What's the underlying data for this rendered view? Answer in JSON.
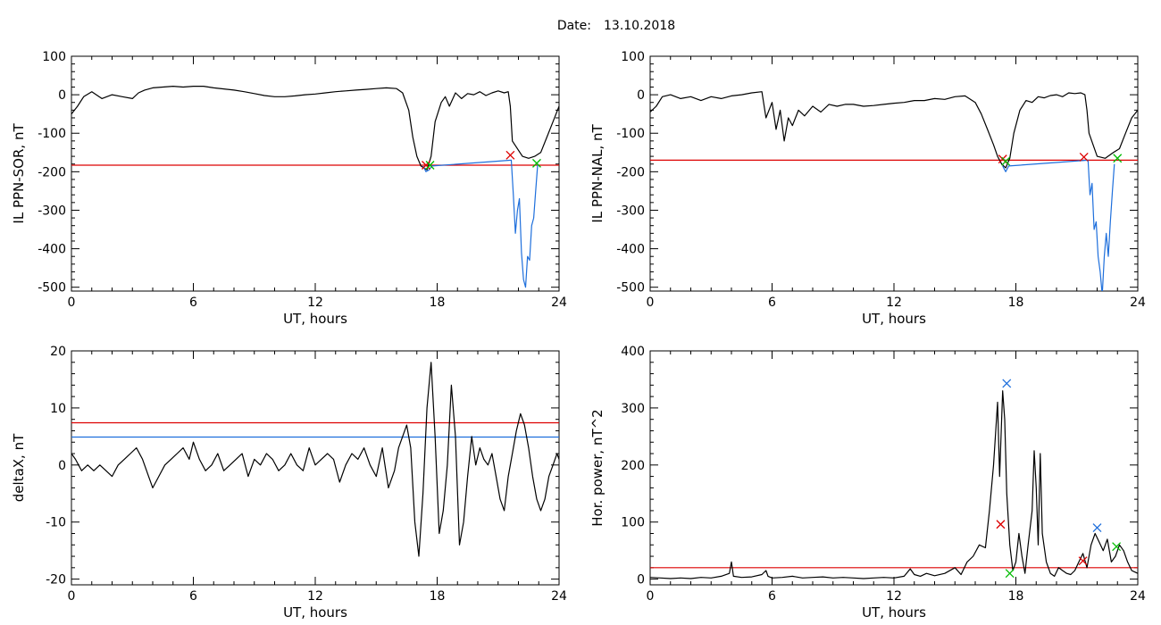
{
  "title_prefix": "Date:",
  "title_date": "13.10.2018",
  "chart_data": [
    {
      "type": "line",
      "xlabel": "UT, hours",
      "ylabel": "IL PPN-SOR, nT",
      "xlim": [
        0,
        24
      ],
      "ylim": [
        -510,
        100
      ],
      "xticks": [
        0,
        6,
        12,
        18,
        24
      ],
      "yticks": [
        -500,
        -400,
        -300,
        -200,
        -100,
        0,
        100
      ],
      "series": [
        {
          "color": "#000000",
          "x": [
            0,
            0.3,
            0.6,
            1.0,
            1.5,
            2.0,
            2.5,
            3.0,
            3.3,
            3.6,
            4.0,
            4.5,
            5.0,
            5.5,
            6.0,
            6.5,
            7.0,
            7.5,
            8.0,
            8.5,
            9.0,
            9.5,
            10.0,
            10.5,
            11.0,
            11.5,
            12.0,
            12.5,
            13.0,
            13.5,
            14.0,
            14.5,
            15.0,
            15.5,
            16.0,
            16.3,
            16.6,
            16.8,
            17.0,
            17.2,
            17.5,
            17.7,
            17.9,
            18.2,
            18.4,
            18.6,
            18.9,
            19.2,
            19.5,
            19.8,
            20.1,
            20.4,
            20.7,
            21.0,
            21.3,
            21.5,
            21.6,
            21.7,
            22.2,
            22.5,
            22.8,
            23.1,
            23.4,
            23.7,
            24.0
          ],
          "y": [
            -50,
            -30,
            -5,
            8,
            -10,
            0,
            -5,
            -10,
            5,
            12,
            18,
            20,
            22,
            20,
            22,
            22,
            18,
            15,
            12,
            8,
            3,
            -2,
            -5,
            -5,
            -3,
            0,
            2,
            5,
            8,
            10,
            12,
            14,
            16,
            18,
            16,
            5,
            -40,
            -110,
            -160,
            -185,
            -195,
            -160,
            -70,
            -20,
            -5,
            -30,
            5,
            -10,
            3,
            0,
            8,
            -2,
            5,
            10,
            5,
            8,
            -30,
            -120,
            -160,
            -165,
            -160,
            -150,
            -110,
            -70,
            -30
          ]
        },
        {
          "color": "#1e6fdc",
          "x": [
            17.3,
            17.45,
            17.6,
            17.75,
            21.65,
            21.75,
            21.85,
            21.95,
            22.05,
            22.15,
            22.25,
            22.35,
            22.45,
            22.55,
            22.65,
            22.75,
            22.85,
            22.95
          ],
          "y": [
            -185,
            -200,
            -195,
            -185,
            -170,
            -260,
            -360,
            -300,
            -270,
            -410,
            -480,
            -500,
            -420,
            -430,
            -340,
            -320,
            -250,
            -180
          ]
        }
      ],
      "hlines": [
        {
          "y": -183,
          "color": "#dd0000"
        }
      ],
      "markers": [
        {
          "x": 17.45,
          "y": -183,
          "color": "#dd0000"
        },
        {
          "x": 17.65,
          "y": -183,
          "color": "#00bb00"
        },
        {
          "x": 21.6,
          "y": -157,
          "color": "#dd0000"
        },
        {
          "x": 22.9,
          "y": -178,
          "color": "#00bb00"
        }
      ]
    },
    {
      "type": "line",
      "xlabel": "UT, hours",
      "ylabel": "IL PPN-NAL, nT",
      "xlim": [
        0,
        24
      ],
      "ylim": [
        -510,
        100
      ],
      "xticks": [
        0,
        6,
        12,
        18,
        24
      ],
      "yticks": [
        -500,
        -400,
        -300,
        -200,
        -100,
        0,
        100
      ],
      "series": [
        {
          "color": "#000000",
          "x": [
            0,
            0.3,
            0.6,
            1.0,
            1.5,
            2.0,
            2.5,
            3.0,
            3.5,
            4.0,
            4.5,
            5.0,
            5.5,
            5.7,
            6.0,
            6.2,
            6.4,
            6.6,
            6.8,
            7.0,
            7.3,
            7.6,
            8.0,
            8.4,
            8.8,
            9.2,
            9.6,
            10.0,
            10.5,
            11.0,
            11.5,
            12.0,
            12.5,
            13.0,
            13.5,
            14.0,
            14.5,
            15.0,
            15.5,
            16.0,
            16.3,
            16.6,
            16.9,
            17.1,
            17.3,
            17.5,
            17.7,
            17.9,
            18.2,
            18.5,
            18.8,
            19.1,
            19.4,
            19.7,
            20.0,
            20.3,
            20.6,
            20.9,
            21.2,
            21.4,
            21.5,
            21.6,
            22.0,
            22.4,
            22.8,
            23.1,
            23.4,
            23.7,
            24.0
          ],
          "y": [
            -45,
            -30,
            -5,
            0,
            -10,
            -5,
            -15,
            -5,
            -10,
            -3,
            0,
            5,
            8,
            -60,
            -20,
            -90,
            -40,
            -120,
            -60,
            -80,
            -40,
            -55,
            -30,
            -45,
            -25,
            -30,
            -25,
            -25,
            -30,
            -28,
            -25,
            -22,
            -20,
            -15,
            -15,
            -10,
            -12,
            -5,
            -3,
            -20,
            -50,
            -90,
            -130,
            -160,
            -180,
            -190,
            -165,
            -100,
            -40,
            -15,
            -20,
            -5,
            -8,
            -2,
            0,
            -5,
            5,
            3,
            5,
            0,
            -40,
            -100,
            -160,
            -165,
            -150,
            -140,
            -100,
            -60,
            -40
          ]
        },
        {
          "color": "#1e6fdc",
          "x": [
            17.35,
            17.5,
            17.65,
            21.55,
            21.65,
            21.75,
            21.85,
            21.95,
            22.05,
            22.15,
            22.25,
            22.35,
            22.45,
            22.55,
            22.65,
            22.75,
            22.85
          ],
          "y": [
            -185,
            -200,
            -185,
            -170,
            -260,
            -230,
            -350,
            -330,
            -420,
            -460,
            -520,
            -420,
            -360,
            -420,
            -330,
            -250,
            -180
          ]
        }
      ],
      "hlines": [
        {
          "y": -170,
          "color": "#dd0000"
        }
      ],
      "markers": [
        {
          "x": 17.35,
          "y": -167,
          "color": "#dd0000"
        },
        {
          "x": 17.5,
          "y": -173,
          "color": "#00bb00"
        },
        {
          "x": 21.35,
          "y": -162,
          "color": "#dd0000"
        },
        {
          "x": 23.0,
          "y": -165,
          "color": "#00bb00"
        }
      ]
    },
    {
      "type": "line",
      "xlabel": "UT, hours",
      "ylabel": "deltaX, nT",
      "xlim": [
        0,
        24
      ],
      "ylim": [
        -21,
        20
      ],
      "xticks": [
        0,
        6,
        12,
        18,
        24
      ],
      "yticks": [
        -20,
        -10,
        0,
        10,
        20
      ],
      "series": [
        {
          "color": "#000000",
          "x": [
            0,
            0.2,
            0.5,
            0.8,
            1.1,
            1.4,
            1.7,
            2.0,
            2.3,
            2.6,
            2.9,
            3.2,
            3.5,
            3.8,
            4.0,
            4.3,
            4.6,
            4.9,
            5.2,
            5.5,
            5.8,
            6.0,
            6.3,
            6.6,
            6.9,
            7.2,
            7.5,
            7.8,
            8.1,
            8.4,
            8.7,
            9.0,
            9.3,
            9.6,
            9.9,
            10.2,
            10.5,
            10.8,
            11.1,
            11.4,
            11.7,
            12.0,
            12.3,
            12.6,
            12.9,
            13.2,
            13.5,
            13.8,
            14.1,
            14.4,
            14.7,
            15.0,
            15.3,
            15.6,
            15.9,
            16.1,
            16.3,
            16.5,
            16.7,
            16.9,
            17.1,
            17.3,
            17.5,
            17.7,
            17.9,
            18.1,
            18.3,
            18.5,
            18.7,
            18.9,
            19.1,
            19.3,
            19.5,
            19.7,
            19.9,
            20.1,
            20.3,
            20.5,
            20.7,
            20.9,
            21.1,
            21.3,
            21.5,
            21.7,
            21.9,
            22.1,
            22.3,
            22.5,
            22.7,
            22.9,
            23.1,
            23.3,
            23.5,
            23.7,
            23.9,
            24.0
          ],
          "y": [
            2,
            1,
            -1,
            0,
            -1,
            0,
            -1,
            -2,
            0,
            1,
            2,
            3,
            1,
            -2,
            -4,
            -2,
            0,
            1,
            2,
            3,
            1,
            4,
            1,
            -1,
            0,
            2,
            -1,
            0,
            1,
            2,
            -2,
            1,
            0,
            2,
            1,
            -1,
            0,
            2,
            0,
            -1,
            3,
            0,
            1,
            2,
            1,
            -3,
            0,
            2,
            1,
            3,
            0,
            -2,
            3,
            -4,
            -1,
            3,
            5,
            7,
            3,
            -10,
            -16,
            -5,
            10,
            18,
            5,
            -12,
            -8,
            0,
            14,
            5,
            -14,
            -10,
            -2,
            5,
            0,
            3,
            1,
            0,
            2,
            -2,
            -6,
            -8,
            -2,
            2,
            6,
            9,
            7,
            3,
            -2,
            -6,
            -8,
            -6,
            -2,
            0,
            2,
            1
          ]
        }
      ],
      "hlines": [
        {
          "y": 7.4,
          "color": "#dd0000"
        },
        {
          "y": 4.9,
          "color": "#1e6fdc"
        }
      ],
      "markers": []
    },
    {
      "type": "line",
      "xlabel": "UT, hours",
      "ylabel": "Hor. power, nT^2",
      "xlim": [
        0,
        24
      ],
      "ylim": [
        -10,
        400
      ],
      "xticks": [
        0,
        6,
        12,
        18,
        24
      ],
      "yticks": [
        0,
        100,
        200,
        300,
        400
      ],
      "series": [
        {
          "color": "#000000",
          "x": [
            0,
            0.5,
            1.0,
            1.5,
            2.0,
            2.5,
            3.0,
            3.5,
            3.9,
            4.0,
            4.1,
            4.5,
            5.0,
            5.5,
            5.7,
            5.8,
            6.0,
            6.5,
            7.0,
            7.5,
            8.0,
            8.5,
            9.0,
            9.5,
            10.0,
            10.5,
            11.0,
            11.5,
            12.0,
            12.5,
            12.8,
            13.0,
            13.3,
            13.6,
            14.0,
            14.5,
            15.0,
            15.3,
            15.6,
            15.9,
            16.2,
            16.5,
            16.7,
            16.9,
            17.1,
            17.2,
            17.35,
            17.45,
            17.55,
            17.7,
            17.85,
            18.0,
            18.15,
            18.3,
            18.45,
            18.6,
            18.8,
            18.9,
            19.0,
            19.1,
            19.2,
            19.3,
            19.5,
            19.7,
            19.9,
            20.1,
            20.3,
            20.5,
            20.7,
            20.9,
            21.1,
            21.3,
            21.5,
            21.7,
            21.9,
            22.1,
            22.3,
            22.5,
            22.7,
            22.9,
            23.1,
            23.3,
            23.5,
            23.7,
            24.0
          ],
          "y": [
            3,
            2,
            1,
            2,
            1,
            3,
            2,
            5,
            10,
            30,
            5,
            3,
            4,
            8,
            15,
            5,
            2,
            3,
            5,
            2,
            3,
            4,
            2,
            3,
            2,
            1,
            2,
            3,
            2,
            5,
            18,
            8,
            5,
            10,
            6,
            10,
            20,
            8,
            30,
            40,
            60,
            55,
            120,
            200,
            310,
            180,
            330,
            280,
            150,
            60,
            15,
            30,
            80,
            40,
            10,
            60,
            120,
            225,
            160,
            60,
            220,
            80,
            30,
            10,
            5,
            20,
            15,
            10,
            8,
            15,
            30,
            45,
            20,
            60,
            80,
            65,
            50,
            70,
            30,
            40,
            60,
            50,
            30,
            15,
            10
          ]
        }
      ],
      "hlines": [
        {
          "y": 20,
          "color": "#dd0000"
        }
      ],
      "markers": [
        {
          "x": 17.55,
          "y": 343,
          "color": "#1e6fdc"
        },
        {
          "x": 17.25,
          "y": 96,
          "color": "#dd0000"
        },
        {
          "x": 17.7,
          "y": 10,
          "color": "#00bb00"
        },
        {
          "x": 22.0,
          "y": 90,
          "color": "#1e6fdc"
        },
        {
          "x": 21.3,
          "y": 32,
          "color": "#dd0000"
        },
        {
          "x": 22.95,
          "y": 57,
          "color": "#00bb00"
        }
      ]
    }
  ]
}
